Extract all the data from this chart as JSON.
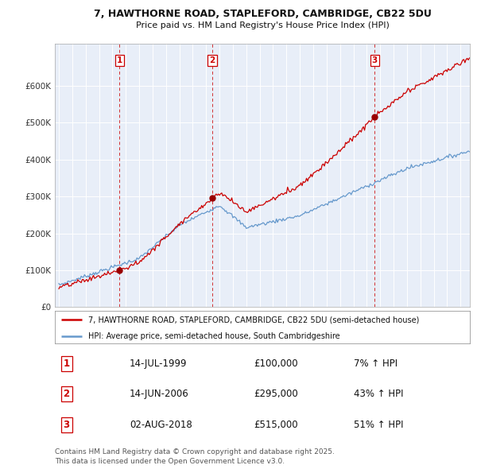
{
  "title1": "7, HAWTHORNE ROAD, STAPLEFORD, CAMBRIDGE, CB22 5DU",
  "title2": "Price paid vs. HM Land Registry's House Price Index (HPI)",
  "legend_line1": "7, HAWTHORNE ROAD, STAPLEFORD, CAMBRIDGE, CB22 5DU (semi-detached house)",
  "legend_line2": "HPI: Average price, semi-detached house, South Cambridgeshire",
  "sale_color": "#cc0000",
  "hpi_color": "#6699cc",
  "chart_bg": "#e8eef8",
  "background_color": "#ffffff",
  "grid_color": "#ffffff",
  "ylim": [
    0,
    700000
  ],
  "yticks": [
    0,
    100000,
    200000,
    300000,
    400000,
    500000,
    600000
  ],
  "ytick_labels": [
    "£0",
    "£100K",
    "£200K",
    "£300K",
    "£400K",
    "£500K",
    "£600K"
  ],
  "sale1_x": 1999.54,
  "sale1_y": 100000,
  "sale2_x": 2006.46,
  "sale2_y": 295000,
  "sale3_x": 2018.59,
  "sale3_y": 515000,
  "footnote": "Contains HM Land Registry data © Crown copyright and database right 2025.\nThis data is licensed under the Open Government Licence v3.0.",
  "table_rows": [
    {
      "num": "1",
      "date": "14-JUL-1999",
      "price": "£100,000",
      "pct": "7% ↑ HPI"
    },
    {
      "num": "2",
      "date": "14-JUN-2006",
      "price": "£295,000",
      "pct": "43% ↑ HPI"
    },
    {
      "num": "3",
      "date": "02-AUG-2018",
      "price": "£515,000",
      "pct": "51% ↑ HPI"
    }
  ],
  "xmin": 1994.7,
  "xmax": 2025.7
}
